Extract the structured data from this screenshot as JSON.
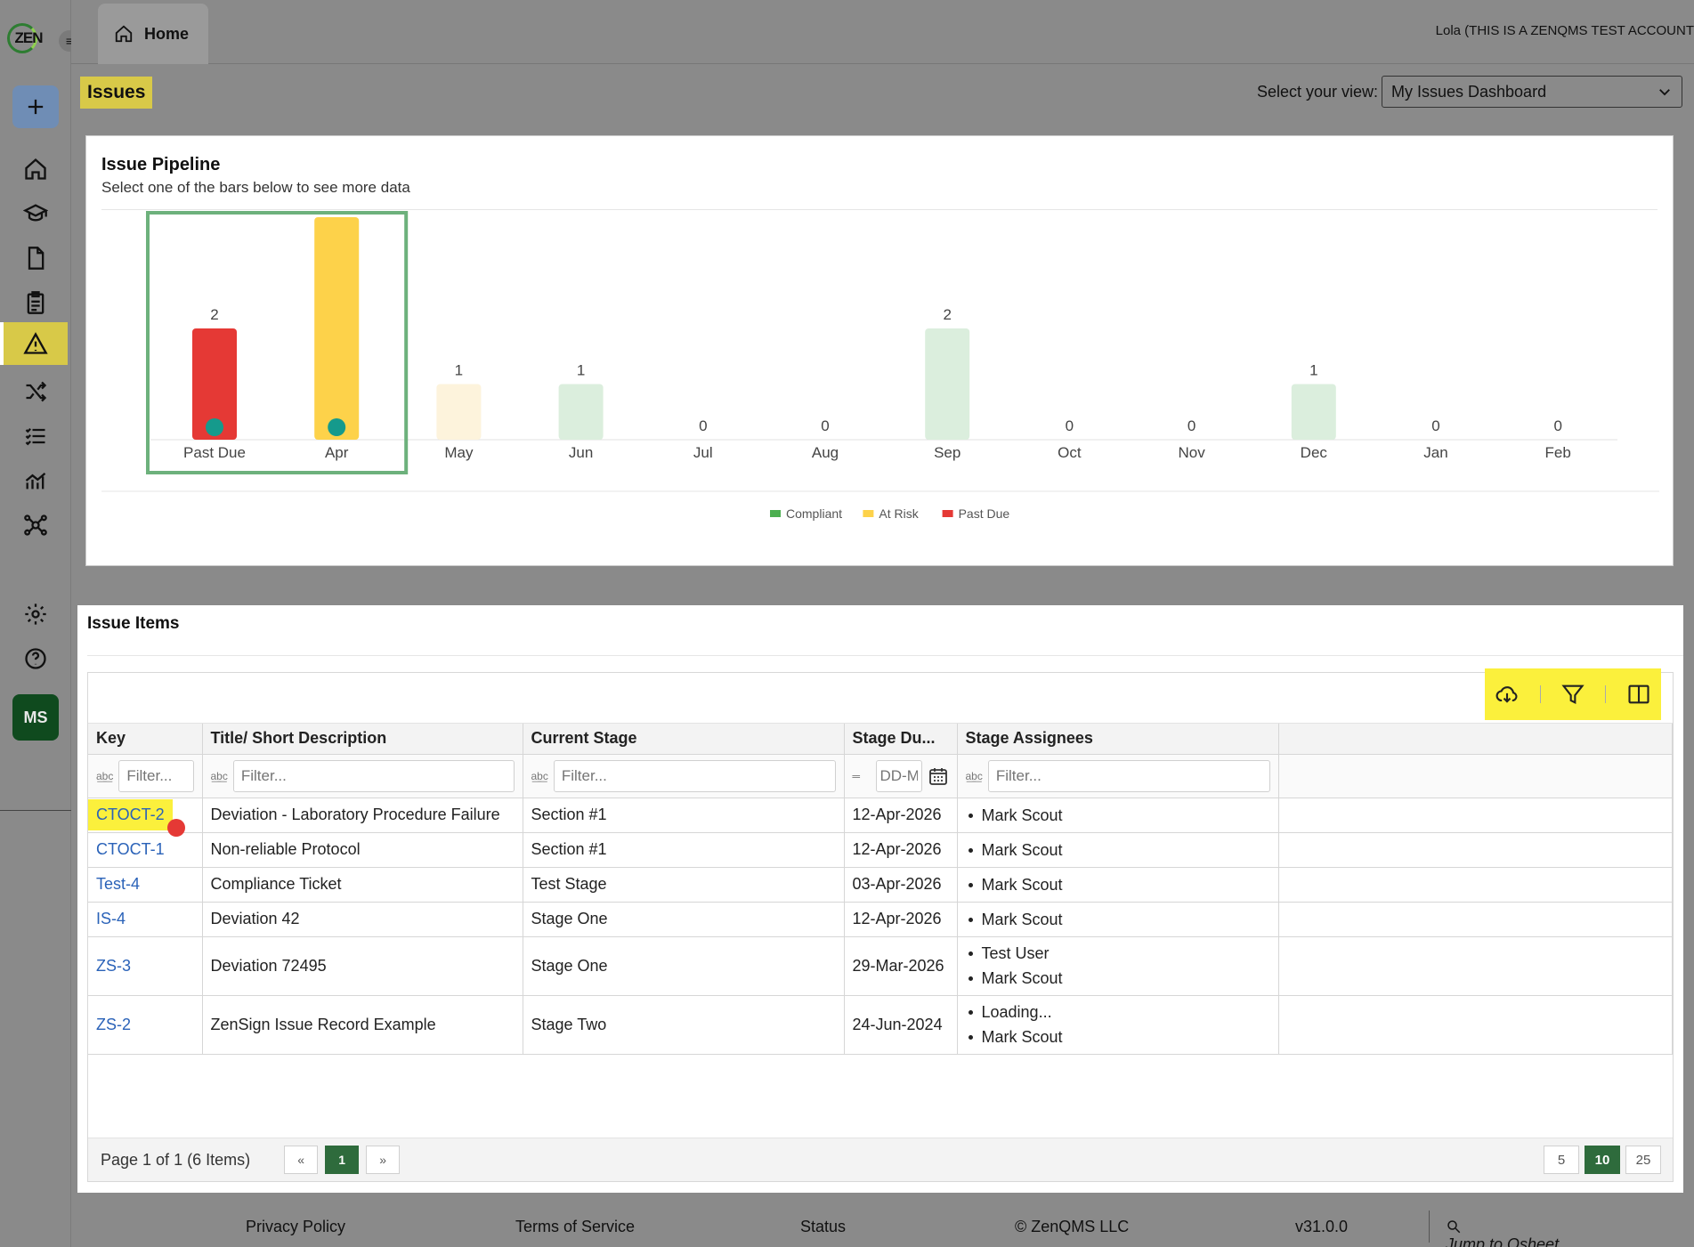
{
  "app": {
    "logo_text": "ZEN",
    "user": "Lola (THIS IS A ZENQMS TEST ACCOUNT",
    "home_tab": "Home",
    "avatar_initials": "MS"
  },
  "header": {
    "page_title": "Issues",
    "view_label": "Select your view:",
    "view_selected": "My Issues Dashboard"
  },
  "pipeline": {
    "title": "Issue Pipeline",
    "subtitle": "Select one of the bars below to see more data"
  },
  "chart_data": {
    "type": "bar",
    "title": "Issue Pipeline",
    "subtitle": "Select one of the bars below to see more data",
    "categories": [
      "Past Due",
      "Apr",
      "May",
      "Jun",
      "Jul",
      "Aug",
      "Sep",
      "Oct",
      "Nov",
      "Dec",
      "Jan",
      "Feb"
    ],
    "values": [
      2,
      4,
      1,
      1,
      0,
      0,
      2,
      0,
      0,
      1,
      0,
      0
    ],
    "bar_status": [
      "Past Due",
      "At Risk",
      "At Risk",
      "Compliant",
      "Compliant",
      "Compliant",
      "Compliant",
      "Compliant",
      "Compliant",
      "Compliant",
      "Compliant",
      "Compliant"
    ],
    "faded": [
      false,
      false,
      true,
      true,
      true,
      true,
      true,
      true,
      true,
      true,
      true,
      true
    ],
    "selected_categories": [
      "Past Due",
      "Apr"
    ],
    "legend": [
      {
        "name": "Compliant",
        "color": "#4caf50"
      },
      {
        "name": "At Risk",
        "color": "#fdd24a"
      },
      {
        "name": "Past Due",
        "color": "#e53935"
      }
    ],
    "colors": {
      "Past Due": "#e53935",
      "At Risk": "#fdd24a",
      "Compliant": "#4caf50",
      "At Risk faded": "#fdf3dc",
      "Compliant faded": "#dbeedd",
      "selection": "#6db17c"
    },
    "ylim": [
      0,
      4
    ],
    "legend_position": "bottom-center",
    "grid": false
  },
  "items": {
    "title": "Issue Items",
    "columns": [
      "Key",
      "Title/ Short Description",
      "Current Stage",
      "Stage Du...",
      "Stage Assignees"
    ],
    "filter_placeholder": "Filter...",
    "date_placeholder": "DD-MMM-YYYY",
    "rows": [
      {
        "key": "CTOCT-2",
        "title": "Deviation - Laboratory Procedure Failure",
        "stage": "Section #1",
        "due": "12-Apr-2026",
        "assignees": [
          "Mark Scout"
        ]
      },
      {
        "key": "CTOCT-1",
        "title": "Non-reliable Protocol",
        "stage": "Section #1",
        "due": "12-Apr-2026",
        "assignees": [
          "Mark Scout"
        ]
      },
      {
        "key": "Test-4",
        "title": "Compliance Ticket",
        "stage": "Test Stage",
        "due": "03-Apr-2026",
        "assignees": [
          "Mark Scout"
        ]
      },
      {
        "key": "IS-4",
        "title": "Deviation 42",
        "stage": "Stage One",
        "due": "12-Apr-2026",
        "assignees": [
          "Mark Scout"
        ]
      },
      {
        "key": "ZS-3",
        "title": "Deviation 72495",
        "stage": "Stage One",
        "due": "29-Mar-2026",
        "assignees": [
          "Test User",
          "Mark Scout"
        ]
      },
      {
        "key": "ZS-2",
        "title": "ZenSign Issue Record Example",
        "stage": "Stage Two",
        "due": "24-Jun-2024",
        "assignees": [
          "Loading...",
          "Mark Scout"
        ]
      }
    ],
    "pager": {
      "text": "Page 1 of 1 (6 Items)",
      "prev": "«",
      "current": "1",
      "next": "»",
      "sizes": [
        "5",
        "10",
        "25"
      ],
      "active_size": "10"
    }
  },
  "footer": {
    "privacy": "Privacy Policy",
    "terms": "Terms of Service",
    "status": "Status",
    "copyright": "© ZenQMS LLC",
    "version": "v31.0.0",
    "jump": "Jump to Qsheet"
  }
}
